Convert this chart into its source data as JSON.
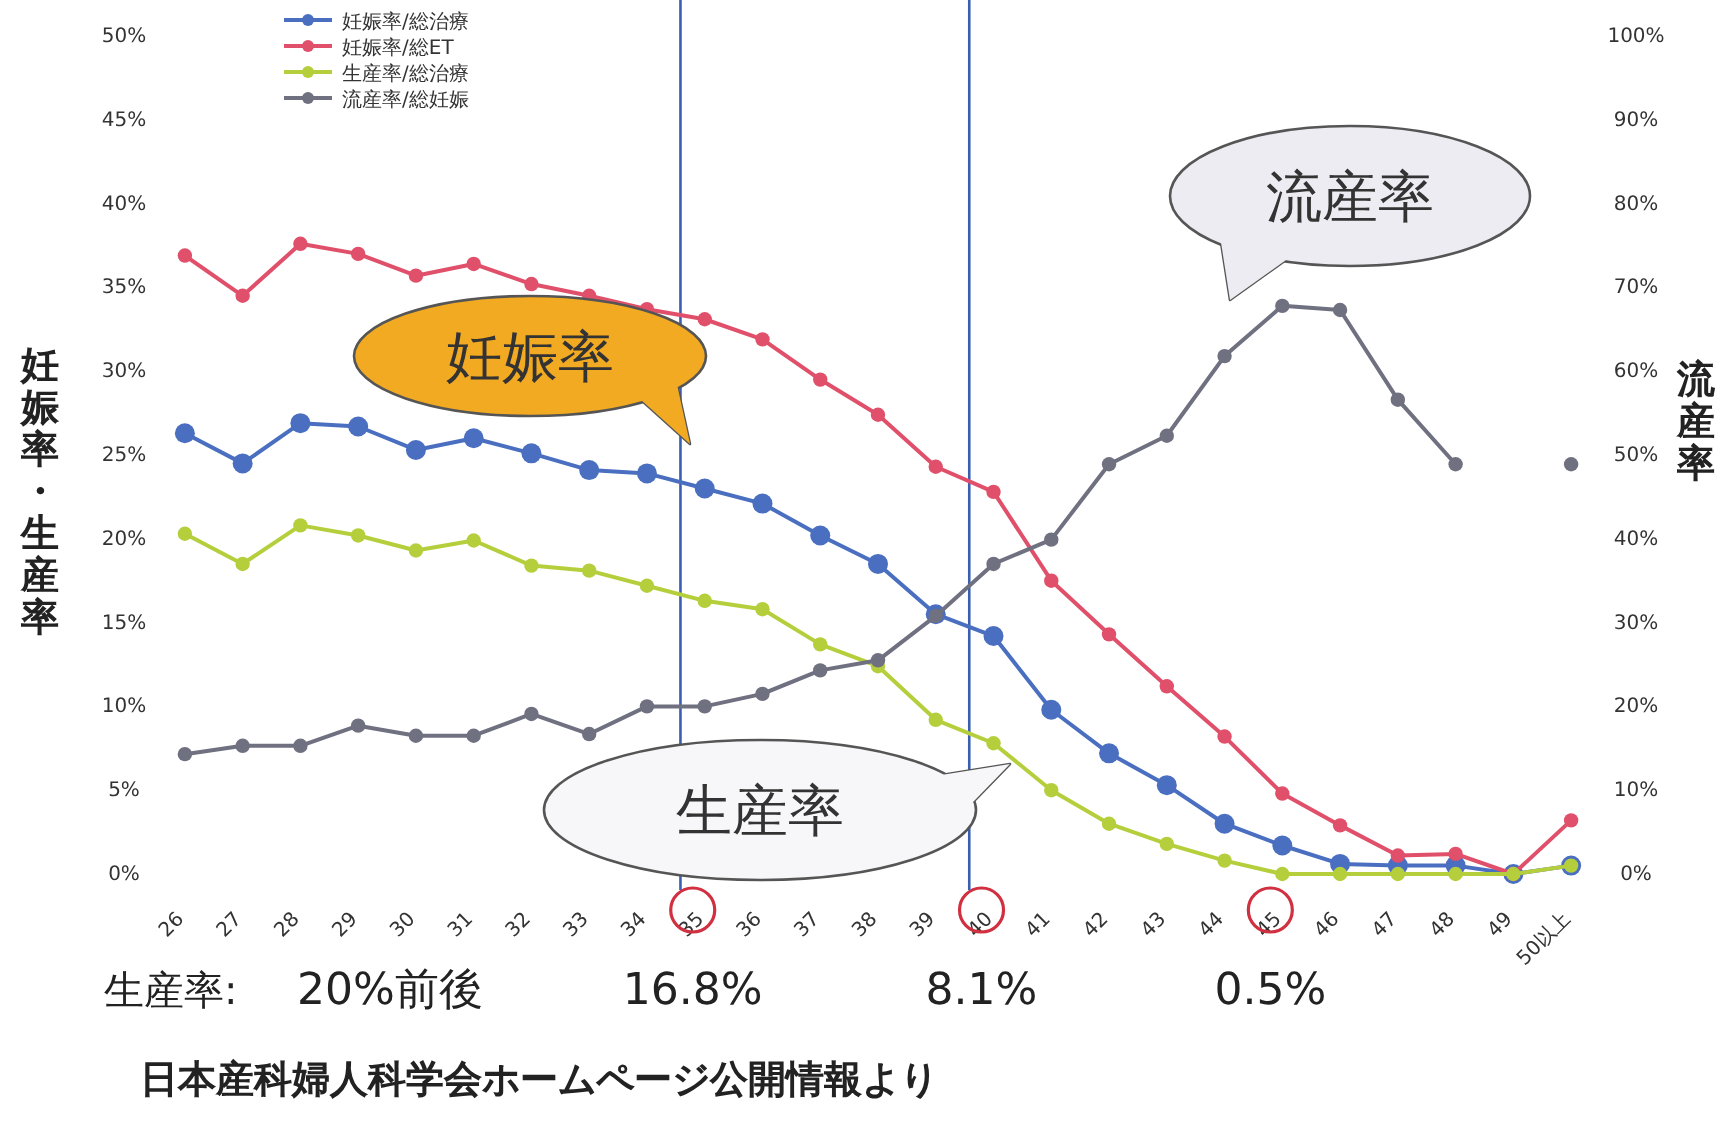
{
  "chart_data": {
    "type": "line",
    "ylabel": "妊娠率・生産率",
    "y2label": "流産率",
    "categories": [
      "26",
      "27",
      "28",
      "29",
      "30",
      "31",
      "32",
      "33",
      "34",
      "35",
      "36",
      "37",
      "38",
      "39",
      "40",
      "41",
      "42",
      "43",
      "44",
      "45",
      "46",
      "47",
      "48",
      "49",
      "50以上"
    ],
    "series": [
      {
        "name": "妊娠率/総治療",
        "color": "#4a6fc0",
        "values": [
          26.3,
          24.5,
          26.9,
          26.7,
          25.3,
          26.0,
          25.1,
          24.1,
          23.9,
          23.0,
          22.1,
          20.2,
          18.5,
          15.5,
          14.2,
          9.8,
          7.2,
          5.3,
          3.0,
          1.7,
          0.6,
          0.5,
          0.5,
          0,
          0.5
        ]
      },
      {
        "name": "妊娠率/総ET",
        "color": "#e0506a",
        "values": [
          36.9,
          34.5,
          37.6,
          37.0,
          35.7,
          36.4,
          35.2,
          34.5,
          33.7,
          33.1,
          31.9,
          29.5,
          27.4,
          24.3,
          22.8,
          17.5,
          14.3,
          11.2,
          8.2,
          4.8,
          2.9,
          1.1,
          1.2,
          0,
          3.2
        ]
      },
      {
        "name": "生産率/総治療",
        "color": "#b5cf3c",
        "values": [
          20.3,
          18.5,
          20.8,
          20.2,
          19.3,
          19.9,
          18.4,
          18.1,
          17.2,
          16.3,
          15.8,
          13.7,
          12.4,
          9.2,
          7.8,
          5.0,
          3.0,
          1.8,
          0.8,
          0,
          0,
          0,
          0,
          0,
          0.5
        ]
      },
      {
        "name": "流産率/総妊娠",
        "color": "#6f7080",
        "axis": "y2",
        "values": [
          14.3,
          15.3,
          15.3,
          17.7,
          16.5,
          16.5,
          19.1,
          16.7,
          20.0,
          20.0,
          21.5,
          24.3,
          25.5,
          30.8,
          37.0,
          39.9,
          48.9,
          52.3,
          61.8,
          67.8,
          67.3,
          56.6,
          48.9,
          null,
          48.9
        ]
      }
    ],
    "ylim": [
      0,
      50
    ],
    "yticks": [
      {
        "value": 0,
        "label": "0%"
      },
      {
        "value": 5,
        "label": "5%"
      },
      {
        "value": 10,
        "label": "10%"
      },
      {
        "value": 15,
        "label": "15%"
      },
      {
        "value": 20,
        "label": "20%"
      },
      {
        "value": 25,
        "label": "25%"
      },
      {
        "value": 30,
        "label": "30%"
      },
      {
        "value": 35,
        "label": "35%"
      },
      {
        "value": 40,
        "label": "40%"
      },
      {
        "value": 45,
        "label": "45%"
      },
      {
        "value": 50,
        "label": "50%"
      }
    ],
    "y2lim": [
      0,
      100
    ],
    "y2ticks": [
      {
        "value": 0,
        "label": "0%"
      },
      {
        "value": 10,
        "label": "10%"
      },
      {
        "value": 20,
        "label": "20%"
      },
      {
        "value": 30,
        "label": "30%"
      },
      {
        "value": 40,
        "label": "40%"
      },
      {
        "value": 50,
        "label": "50%"
      },
      {
        "value": 60,
        "label": "60%"
      },
      {
        "value": 70,
        "label": "70%"
      },
      {
        "value": 80,
        "label": "80%"
      },
      {
        "value": 90,
        "label": "90%"
      },
      {
        "value": 100,
        "label": "100%"
      }
    ],
    "ref_lines": [
      {
        "axis": "x",
        "value": "35",
        "color": "#3a5fb0"
      },
      {
        "axis": "x",
        "value": "40",
        "color": "#3a5fb0"
      }
    ],
    "annotations": [
      "妊娠率",
      "生産率",
      "流産率",
      "生産率:",
      "20%前後",
      "16.8%",
      "8.1%",
      "0.5%",
      "日本産科婦人科学会ホームページ公開情報より"
    ],
    "legend": "top left",
    "marker": "circle",
    "line_style": "solid"
  }
}
